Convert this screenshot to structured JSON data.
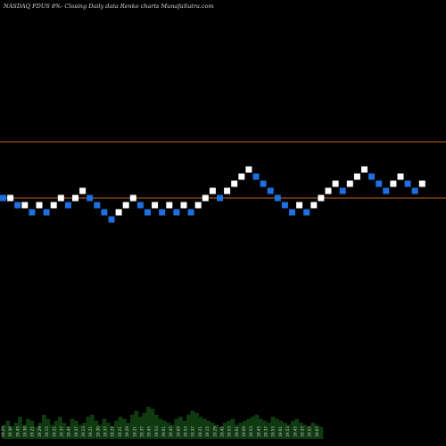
{
  "chart_data": {
    "type": "renko",
    "title": "NASDAQ FDUS 8%-  Closing Daily data Renko  charts MunafaSutra.com",
    "resistance_levels": [
      20.0,
      19.37
    ],
    "bricks": [
      {
        "c": "blue",
        "y": 19.37
      },
      {
        "c": "white",
        "y": 19.37
      },
      {
        "c": "blue",
        "y": 19.29
      },
      {
        "c": "white",
        "y": 19.29
      },
      {
        "c": "blue",
        "y": 19.21
      },
      {
        "c": "white",
        "y": 19.29
      },
      {
        "c": "blue",
        "y": 19.21
      },
      {
        "c": "white",
        "y": 19.29
      },
      {
        "c": "white",
        "y": 19.37
      },
      {
        "c": "blue",
        "y": 19.29
      },
      {
        "c": "white",
        "y": 19.37
      },
      {
        "c": "white",
        "y": 19.45
      },
      {
        "c": "blue",
        "y": 19.37
      },
      {
        "c": "blue",
        "y": 19.29
      },
      {
        "c": "blue",
        "y": 19.21
      },
      {
        "c": "blue",
        "y": 19.13
      },
      {
        "c": "white",
        "y": 19.21
      },
      {
        "c": "white",
        "y": 19.29
      },
      {
        "c": "white",
        "y": 19.37
      },
      {
        "c": "blue",
        "y": 19.29
      },
      {
        "c": "blue",
        "y": 19.21
      },
      {
        "c": "white",
        "y": 19.29
      },
      {
        "c": "blue",
        "y": 19.21
      },
      {
        "c": "white",
        "y": 19.29
      },
      {
        "c": "blue",
        "y": 19.21
      },
      {
        "c": "white",
        "y": 19.29
      },
      {
        "c": "blue",
        "y": 19.21
      },
      {
        "c": "white",
        "y": 19.29
      },
      {
        "c": "white",
        "y": 19.37
      },
      {
        "c": "white",
        "y": 19.45
      },
      {
        "c": "blue",
        "y": 19.37
      },
      {
        "c": "white",
        "y": 19.45
      },
      {
        "c": "white",
        "y": 19.53
      },
      {
        "c": "white",
        "y": 19.61
      },
      {
        "c": "white",
        "y": 19.69
      },
      {
        "c": "blue",
        "y": 19.61
      },
      {
        "c": "blue",
        "y": 19.53
      },
      {
        "c": "blue",
        "y": 19.45
      },
      {
        "c": "blue",
        "y": 19.37
      },
      {
        "c": "blue",
        "y": 19.29
      },
      {
        "c": "blue",
        "y": 19.21
      },
      {
        "c": "white",
        "y": 19.29
      },
      {
        "c": "blue",
        "y": 19.21
      },
      {
        "c": "white",
        "y": 19.29
      },
      {
        "c": "white",
        "y": 19.37
      },
      {
        "c": "white",
        "y": 19.45
      },
      {
        "c": "white",
        "y": 19.53
      },
      {
        "c": "blue",
        "y": 19.45
      },
      {
        "c": "white",
        "y": 19.53
      },
      {
        "c": "white",
        "y": 19.61
      },
      {
        "c": "white",
        "y": 19.69
      },
      {
        "c": "blue",
        "y": 19.61
      },
      {
        "c": "blue",
        "y": 19.53
      },
      {
        "c": "blue",
        "y": 19.45
      },
      {
        "c": "white",
        "y": 19.53
      },
      {
        "c": "white",
        "y": 19.61
      },
      {
        "c": "blue",
        "y": 19.53
      },
      {
        "c": "blue",
        "y": 19.45
      },
      {
        "c": "white",
        "y": 19.53
      }
    ],
    "volume": [
      0.35,
      0.45,
      0.3,
      0.4,
      0.55,
      0.35,
      0.5,
      0.45,
      0.3,
      0.4,
      0.6,
      0.5,
      0.35,
      0.45,
      0.55,
      0.4,
      0.3,
      0.5,
      0.45,
      0.35,
      0.4,
      0.55,
      0.6,
      0.45,
      0.35,
      0.5,
      0.4,
      0.3,
      0.45,
      0.55,
      0.5,
      0.4,
      0.6,
      0.7,
      0.55,
      0.65,
      0.8,
      0.75,
      0.6,
      0.5,
      0.45,
      0.4,
      0.35,
      0.5,
      0.55,
      0.45,
      0.6,
      0.7,
      0.65,
      0.55,
      0.5,
      0.45,
      0.4,
      0.35,
      0.3,
      0.4,
      0.45,
      0.5,
      0.35,
      0.4,
      0.45,
      0.5,
      0.55,
      0.6,
      0.5,
      0.45,
      0.4,
      0.55,
      0.5,
      0.45,
      0.4,
      0.35,
      0.45,
      0.5,
      0.4,
      0.35,
      0.3,
      0.4,
      0.35,
      0.3
    ],
    "volume_labels": [
      "19.25",
      "19.30",
      "19.45",
      "19.30",
      "19.21",
      "19.29",
      "19.15",
      "19.21",
      "19.37",
      "19.45",
      "19.37",
      "19.13",
      "19.21",
      "19.30",
      "19.37",
      "19.29",
      "19.21",
      "19.29",
      "19.21",
      "19.37",
      "19.45",
      "19.53",
      "19.61",
      "19.45",
      "19.69",
      "19.53",
      "19.37",
      "19.21",
      "19.15",
      "19.29",
      "19.45",
      "19.53",
      "19.61",
      "19.69",
      "19.53",
      "19.45",
      "19.37",
      "19.53",
      "19.61",
      "19.53",
      "19.45",
      "19.37",
      "19.53",
      "19.67"
    ]
  }
}
